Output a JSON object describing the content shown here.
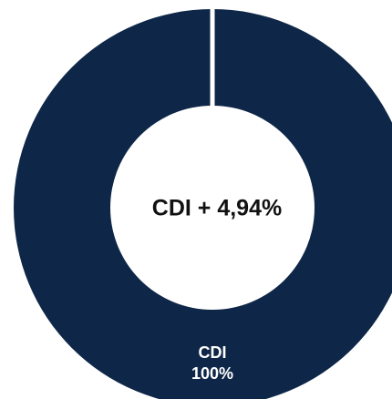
{
  "chart_data": {
    "type": "pie",
    "donut": true,
    "center_label": "CDI + 4,94%",
    "slices": [
      {
        "name": "CDI",
        "value": 100,
        "value_label": "100%",
        "color": "#0e2647"
      }
    ],
    "separator_color": "#ffffff",
    "legend": "none"
  }
}
